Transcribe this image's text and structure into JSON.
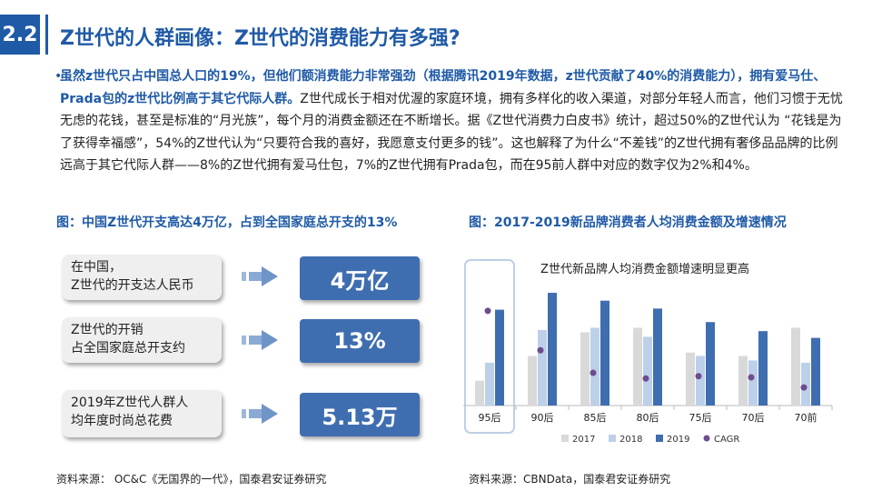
{
  "header": {
    "section_number": "2.2",
    "title": "Z世代的人群画像：Z世代的消费能力有多强?"
  },
  "body": {
    "bullet": "•",
    "bold_text": "虽然z世代只占中国总人口的19%，但他们额消费能力非常强劲（根据腾讯2019年数据，z世代贡献了40%的消费能力），拥有爱马仕、Prada包的z世代比例高于其它代际人群。",
    "normal_text": "Z世代成长于相对优渥的家庭环境，拥有多样化的收入渠道，对部分年轻人而言，他们习惯于无忧无虑的花钱，甚至是标准的“月光族”，每个月的消费金额还在不断增长。据《Z世代消费力白皮书》统计，超过50%的Z世代认为 “花钱是为了获得幸福感”，54%的Z世代认为“只要符合我的喜好，我愿意支付更多的钱”。这也解释了为什么“不差钱”的Z世代拥有奢侈品品牌的比例远高于其它代际人群——8%的Z世代拥有爱马仕包，7%的Z世代拥有Prada包，而在95前人群中对应的数字仅为2%和4%。"
  },
  "figure_left": {
    "title": "图：中国Z世代开支高达4万亿，占到全国家庭总开支的13%",
    "rows": [
      {
        "label": "在中国，\nZ世代的开支达人民币",
        "value": "4万亿"
      },
      {
        "label": "Z世代的开销\n占全国家庭总开支约",
        "value": "13%"
      },
      {
        "label": "2019年Z世代人群人\n均年度时尚总花费",
        "value": "5.13万"
      }
    ],
    "source": "资料来源：  OC&C《无国界的一代》，国泰君安证券研究"
  },
  "figure_right": {
    "title": "图：2017-2019新品牌消费者人均消费金额及增速情况",
    "source": "资料来源：CBNData，国泰君安证券研究"
  },
  "chart_data": {
    "type": "bar",
    "title": "Z世代新品牌人均消费金额增速明显更高",
    "categories": [
      "95后",
      "90后",
      "85后",
      "80后",
      "75后",
      "70后",
      "70前"
    ],
    "series": [
      {
        "name": "2017",
        "color": "#d9d9d9",
        "values": [
          0.22,
          0.44,
          0.65,
          0.69,
          0.47,
          0.44,
          0.69
        ]
      },
      {
        "name": "2018",
        "color": "#bdd0ea",
        "values": [
          0.38,
          0.67,
          0.69,
          0.61,
          0.44,
          0.4,
          0.38
        ]
      },
      {
        "name": "2019",
        "color": "#3f6eb0",
        "values": [
          0.85,
          1.0,
          0.93,
          0.86,
          0.74,
          0.66,
          0.6
        ]
      }
    ],
    "cagr": {
      "name": "CAGR",
      "color": "#6d4c8f",
      "values": [
        0.84,
        0.49,
        0.29,
        0.24,
        0.26,
        0.25,
        0.16
      ]
    },
    "highlighted_category": "95后",
    "legend_position": "bottom",
    "grid": false
  }
}
